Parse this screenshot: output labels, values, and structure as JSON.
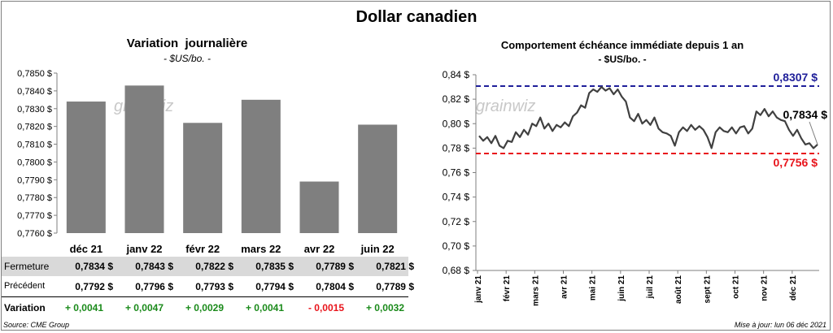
{
  "title": "Dollar canadien",
  "source": "Source: CME Group",
  "updated": "Mise à jour: lun 06 déc 2021",
  "watermark": "grainwiz",
  "left": {
    "title": "Variation  journalière",
    "subtitle": "- $US/bo. -",
    "table": {
      "row_labels": [
        "Fermeture",
        "Précédent",
        "Variation"
      ],
      "fermeture": [
        "0,7834  $",
        "0,7843  $",
        "0,7822  $",
        "0,7835  $",
        "0,7789  $",
        "0,7821  $"
      ],
      "precedent": [
        "0,7792  $",
        "0,7796  $",
        "0,7793  $",
        "0,7794  $",
        "0,7804  $",
        "0,7789  $"
      ],
      "variation": [
        "+ 0,0041",
        "+ 0,0047",
        "+ 0,0029",
        "+ 0,0041",
        "- 0,0015",
        "+ 0,0032"
      ]
    }
  },
  "right": {
    "title": "Comportement échéance immédiate depuis 1 an",
    "subtitle": "- $US/bo. -"
  },
  "colors": {
    "bar": "#7f7f7f",
    "line": "#404040",
    "high_line": "#1f1f9a",
    "low_line": "#e8141b",
    "positive": "#1a8a1a",
    "negative": "#e8141b",
    "row_shade": "#d9d9d9"
  },
  "chart_data": [
    {
      "type": "bar",
      "categories": [
        "déc 21",
        "janv 22",
        "févr 22",
        "mars 22",
        "avr 22",
        "juin 22"
      ],
      "values": [
        0.7834,
        0.7843,
        0.7822,
        0.7835,
        0.7789,
        0.7821
      ],
      "ylim": [
        0.776,
        0.785
      ],
      "yticks": [
        "0,7760 $",
        "0,7770 $",
        "0,7780 $",
        "0,7790 $",
        "0,7800 $",
        "0,7810 $",
        "0,7820 $",
        "0,7830 $",
        "0,7840 $",
        "0,7850 $"
      ],
      "grid": false
    },
    {
      "type": "line",
      "x_labels": [
        "janv 21",
        "févr 21",
        "mars 21",
        "avr 21",
        "mai 21",
        "juin 21",
        "juil 21",
        "août 21",
        "sept 21",
        "oct 21",
        "nov 21",
        "déc 21"
      ],
      "ylim": [
        0.68,
        0.84
      ],
      "yticks": [
        "0,68 $",
        "0,70 $",
        "0,72 $",
        "0,74 $",
        "0,76 $",
        "0,78 $",
        "0,80 $",
        "0,82 $",
        "0,84 $"
      ],
      "values": [
        0.79,
        0.786,
        0.789,
        0.784,
        0.79,
        0.782,
        0.78,
        0.786,
        0.785,
        0.793,
        0.789,
        0.795,
        0.791,
        0.8,
        0.798,
        0.805,
        0.796,
        0.8,
        0.794,
        0.799,
        0.797,
        0.801,
        0.798,
        0.806,
        0.809,
        0.815,
        0.813,
        0.825,
        0.828,
        0.826,
        0.83,
        0.827,
        0.829,
        0.824,
        0.828,
        0.822,
        0.818,
        0.805,
        0.802,
        0.808,
        0.8,
        0.803,
        0.799,
        0.805,
        0.796,
        0.793,
        0.792,
        0.79,
        0.782,
        0.793,
        0.797,
        0.794,
        0.799,
        0.795,
        0.798,
        0.795,
        0.789,
        0.78,
        0.793,
        0.797,
        0.794,
        0.793,
        0.797,
        0.792,
        0.797,
        0.798,
        0.792,
        0.796,
        0.81,
        0.807,
        0.812,
        0.806,
        0.81,
        0.805,
        0.803,
        0.802,
        0.795,
        0.79,
        0.795,
        0.788,
        0.783,
        0.784,
        0.78,
        0.783
      ],
      "reference_lines": [
        {
          "value": 0.8307,
          "label": "0,8307 $",
          "color": "#1f1f9a"
        },
        {
          "value": 0.7756,
          "label": "0,7756 $",
          "color": "#e8141b"
        }
      ],
      "last_label": "0,7834 $",
      "grid": false
    }
  ]
}
